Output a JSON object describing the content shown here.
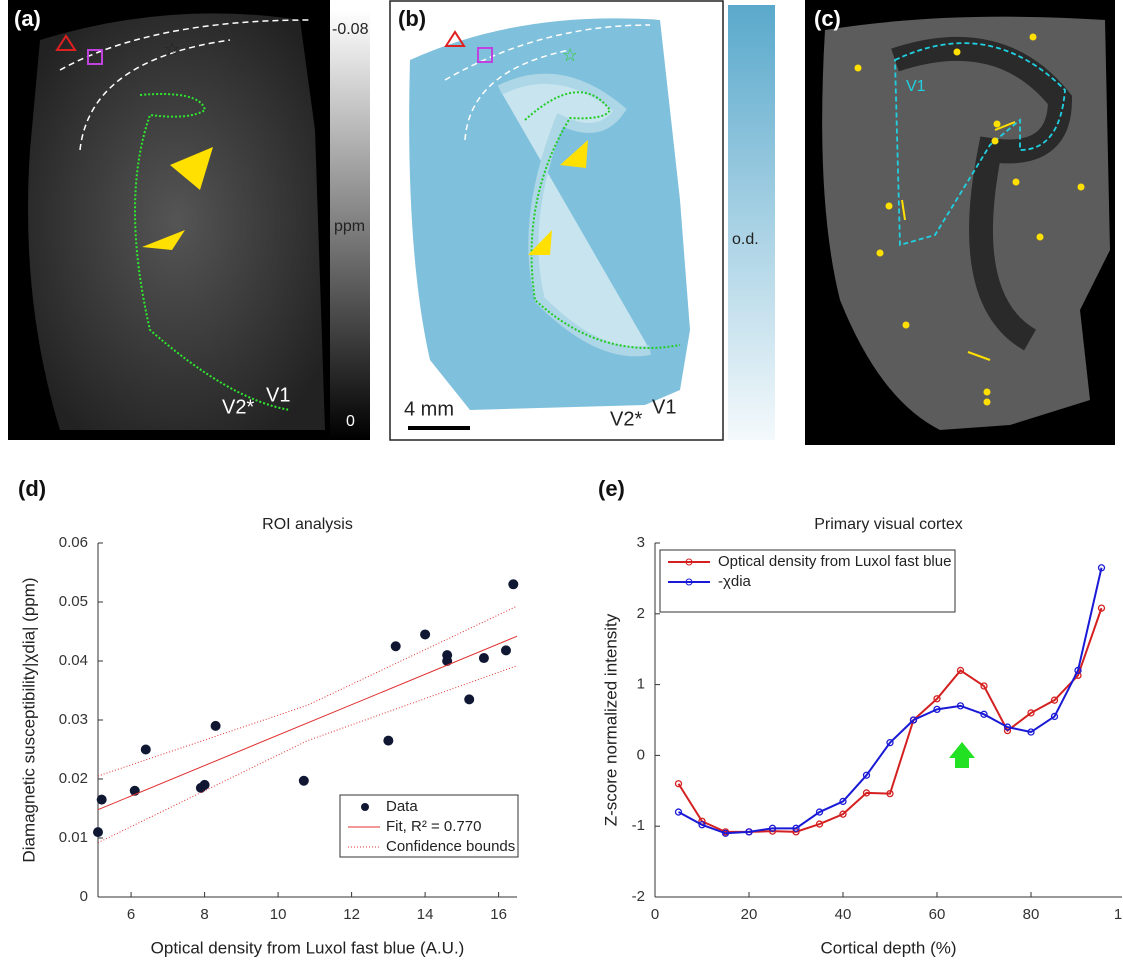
{
  "panels": [
    {
      "label": "(a)",
      "colorbar_top": "-0.08",
      "colorbar_unit": "ppm",
      "colorbar_bottom": "0",
      "region_left": "V2*",
      "region_right": "V1"
    },
    {
      "label": "(b)",
      "scale_bar": "4 mm",
      "colorbar_unit": "o.d.",
      "region_left": "V2*",
      "region_right": "V1"
    },
    {
      "label": "(c)",
      "region": "V1"
    }
  ],
  "chart_data": [
    {
      "type": "scatter",
      "panel_label": "(d)",
      "title": "ROI analysis",
      "xlabel": "Optical density from Luxol fast blue (A.U.)",
      "ylabel": "Diamagnetic susceptibility|χdia| (ppm)",
      "xlim": [
        5.1,
        16.5
      ],
      "xticks": [
        6,
        8,
        10,
        12,
        14,
        16
      ],
      "ylim": [
        0,
        0.06
      ],
      "yticks": [
        0,
        0.01,
        0.02,
        0.03,
        0.04,
        0.05,
        0.06
      ],
      "series": [
        {
          "name": "Data",
          "color": "#0f1733",
          "style": "marker",
          "x": [
            5.1,
            5.2,
            6.1,
            6.4,
            7.9,
            8.0,
            8.3,
            10.7,
            13.0,
            13.2,
            14.0,
            14.6,
            14.6,
            15.2,
            15.6,
            16.2,
            16.4
          ],
          "values": [
            0.011,
            0.0165,
            0.018,
            0.025,
            0.0185,
            0.019,
            0.029,
            0.0197,
            0.0265,
            0.0425,
            0.0445,
            0.04,
            0.041,
            0.0335,
            0.0405,
            0.0418,
            0.053
          ]
        },
        {
          "name": "Fit, R² = 0.770",
          "color": "#e03030",
          "style": "line",
          "x": [
            5.1,
            16.5
          ],
          "values": [
            0.0148,
            0.0442
          ]
        },
        {
          "name": "Confidence bounds",
          "color": "#e03030",
          "style": "dotted",
          "x": [
            5.1,
            10.8,
            16.5
          ],
          "upper": [
            0.0205,
            0.0325,
            0.0493
          ],
          "lower": [
            0.0092,
            0.0265,
            0.0392
          ]
        }
      ]
    },
    {
      "type": "line",
      "panel_label": "(e)",
      "title": "Primary visual cortex",
      "xlabel": "Cortical depth (%)",
      "ylabel": "Z-score normalized intensity",
      "xlim": [
        0,
        100
      ],
      "xticks": [
        0,
        20,
        40,
        60,
        80,
        {
          "value": 100,
          "label": "1"
        }
      ],
      "ylim": [
        -2,
        3
      ],
      "yticks": [
        -2,
        -1,
        0,
        1,
        2,
        3
      ],
      "x": [
        5,
        10,
        15,
        20,
        25,
        30,
        35,
        40,
        45,
        50,
        55,
        60,
        65,
        70,
        75,
        80,
        85,
        90,
        95
      ],
      "series": [
        {
          "name": "Optical density from Luxol fast blue",
          "color": "#d42020",
          "values": [
            -0.4,
            -0.93,
            -1.08,
            -1.08,
            -1.07,
            -1.08,
            -0.97,
            -0.83,
            -0.53,
            -0.54,
            0.5,
            0.8,
            1.2,
            0.98,
            0.35,
            0.6,
            0.78,
            1.13,
            2.08
          ]
        },
        {
          "name": "-χdia",
          "color": "#1a1ad6",
          "values": [
            -0.8,
            -0.98,
            -1.1,
            -1.08,
            -1.03,
            -1.03,
            -0.8,
            -0.65,
            -0.28,
            0.18,
            0.5,
            0.65,
            0.7,
            0.58,
            0.4,
            0.33,
            0.55,
            1.2,
            2.65
          ]
        }
      ]
    }
  ]
}
